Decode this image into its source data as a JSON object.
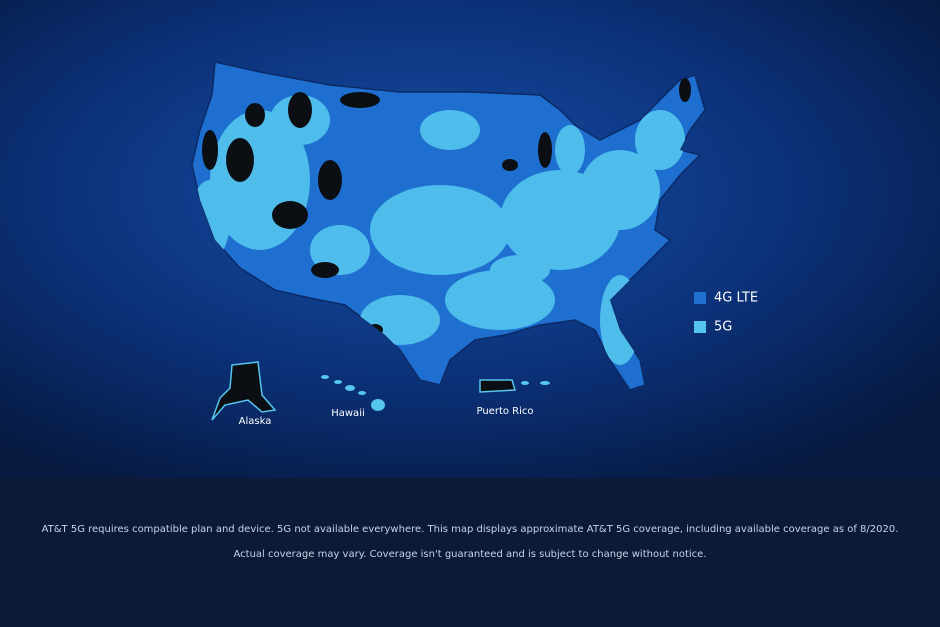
{
  "legend": {
    "items": [
      {
        "label": "4G LTE",
        "color": "#1e6fd0"
      },
      {
        "label": "5G",
        "color": "#55c6ee"
      }
    ]
  },
  "map_labels": {
    "alaska": "Alaska",
    "hawaii": "Hawaii",
    "puerto_rico": "Puerto Rico"
  },
  "disclaimer": {
    "line1": "AT&T 5G requires compatible plan and device. 5G not available everywhere. This map displays approximate AT&T 5G coverage, including available coverage as of 8/2020.",
    "line2": "Actual coverage may vary. Coverage isn't guaranteed and is subject to change without notice."
  }
}
